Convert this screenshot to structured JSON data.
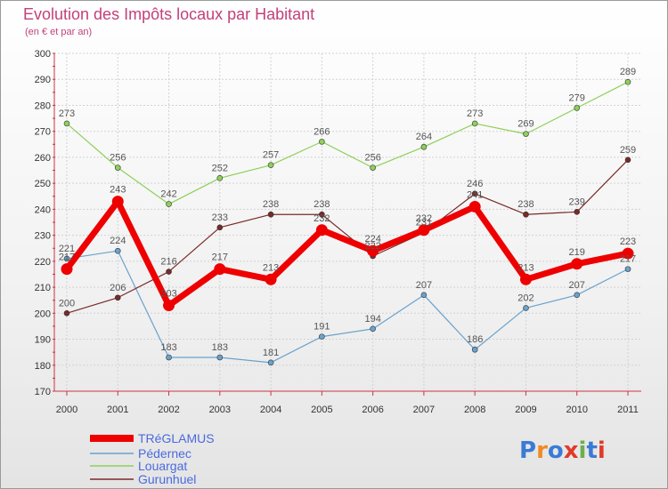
{
  "chart_data": {
    "type": "line",
    "title": "Evolution des Impôts locaux par Habitant",
    "subtitle": "(en € et par an)",
    "x": [
      "2000",
      "2001",
      "2002",
      "2003",
      "2004",
      "2005",
      "2006",
      "2007",
      "2008",
      "2009",
      "2010",
      "2011"
    ],
    "ylim": [
      170,
      300
    ],
    "yticks": [
      170,
      180,
      190,
      200,
      210,
      220,
      230,
      240,
      250,
      260,
      270,
      280,
      290,
      300
    ],
    "grid": true,
    "legend_position": "bottom-left",
    "series": [
      {
        "name": "TRéGLAMUS",
        "color": "#ee0000",
        "emphasis": true,
        "values": [
          217,
          243,
          203,
          217,
          213,
          232,
          224,
          232,
          241,
          213,
          219,
          223
        ]
      },
      {
        "name": "Pédernec",
        "color": "#6aa2cc",
        "values": [
          221,
          224,
          183,
          183,
          181,
          191,
          194,
          207,
          186,
          202,
          207,
          217
        ]
      },
      {
        "name": "Louargat",
        "color": "#8ed05a",
        "values": [
          273,
          256,
          242,
          252,
          257,
          266,
          256,
          264,
          273,
          269,
          279,
          289
        ]
      },
      {
        "name": "Gurunhuel",
        "color": "#7a2a2a",
        "values": [
          200,
          206,
          216,
          233,
          238,
          238,
          222,
          231,
          246,
          238,
          239,
          259
        ]
      }
    ]
  },
  "logo": {
    "text": "Proxiti"
  }
}
